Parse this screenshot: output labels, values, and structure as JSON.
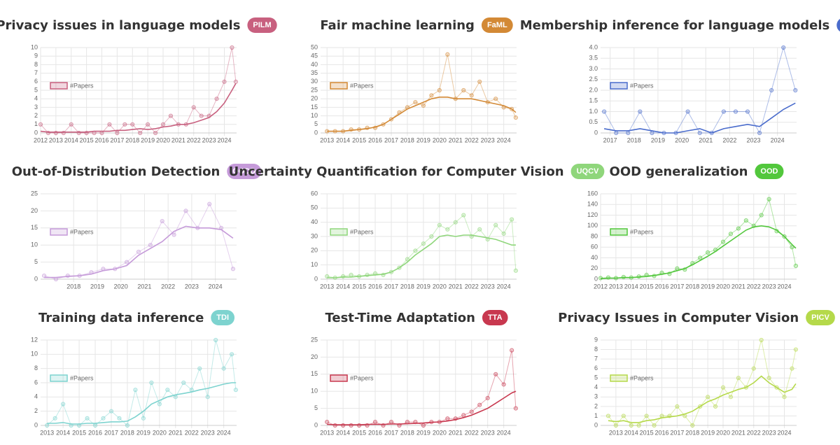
{
  "chart_data": [
    {
      "type": "line",
      "title": "Privacy issues in language models",
      "badge": "PILM",
      "color": "#c8607f",
      "x": [
        2012,
        2012.5,
        2013,
        2013.5,
        2014,
        2014.5,
        2015,
        2015.5,
        2016,
        2016.5,
        2017,
        2017.5,
        2018,
        2018.5,
        2019,
        2019.5,
        2020,
        2020.5,
        2021,
        2021.5,
        2022,
        2022.5,
        2023,
        2023.5,
        2024,
        2024.5,
        2024.75
      ],
      "series": [
        {
          "name": "#Papers",
          "color": "#c8607f",
          "values": [
            1,
            0,
            0,
            0,
            1,
            0,
            0,
            0,
            0,
            1,
            0,
            1,
            1,
            0,
            1,
            0,
            1,
            2,
            1,
            1,
            3,
            2,
            2,
            4,
            6,
            10,
            6
          ]
        }
      ],
      "trend": [
        0.2,
        0.1,
        0.1,
        0.1,
        0.1,
        0.1,
        0.1,
        0.2,
        0.2,
        0.2,
        0.3,
        0.3,
        0.4,
        0.5,
        0.4,
        0.5,
        0.7,
        0.8,
        1,
        1,
        1.2,
        1.5,
        1.8,
        2.5,
        3.5,
        5,
        5.8
      ],
      "xlim": [
        2012,
        2024.8
      ],
      "xticks": [
        2012,
        2013,
        2014,
        2015,
        2016,
        2017,
        2018,
        2019,
        2020,
        2021,
        2022,
        2023,
        2024
      ],
      "ylim": [
        0,
        10
      ],
      "yticks": [
        0,
        1,
        2,
        3,
        4,
        5,
        6,
        7,
        8,
        9,
        10
      ],
      "grid": true
    },
    {
      "type": "line",
      "title": "Fair machine learning",
      "badge": "FaML",
      "color": "#d38935",
      "x": [
        2013,
        2013.5,
        2014,
        2014.5,
        2015,
        2015.5,
        2016,
        2016.5,
        2017,
        2017.5,
        2018,
        2018.5,
        2019,
        2019.5,
        2020,
        2020.5,
        2021,
        2021.5,
        2022,
        2022.5,
        2023,
        2023.5,
        2024,
        2024.5,
        2024.75
      ],
      "series": [
        {
          "name": "#Papers",
          "color": "#d38935",
          "values": [
            1,
            1,
            1,
            2,
            2,
            3,
            3,
            5,
            8,
            12,
            15,
            18,
            16,
            22,
            25,
            46,
            20,
            25,
            22,
            30,
            18,
            20,
            15,
            14,
            9
          ]
        }
      ],
      "trend": [
        1,
        1,
        1,
        1.5,
        2,
        2.5,
        3.5,
        5,
        8,
        11,
        14,
        16,
        18,
        20,
        21,
        21,
        20,
        20,
        20,
        19,
        18,
        17,
        16,
        14,
        12
      ],
      "xlim": [
        2012.6,
        2024.8
      ],
      "xticks": [
        2013,
        2014,
        2015,
        2016,
        2017,
        2018,
        2019,
        2020,
        2021,
        2022,
        2023,
        2024
      ],
      "ylim": [
        0,
        50
      ],
      "yticks": [
        0,
        5,
        10,
        15,
        20,
        25,
        30,
        35,
        40,
        45,
        50
      ],
      "grid": true
    },
    {
      "type": "line",
      "title": "Membership inference for language models",
      "badge": "MIALM",
      "color": "#4a6ccc",
      "x": [
        2016.75,
        2017.25,
        2017.75,
        2018.25,
        2018.75,
        2019.25,
        2019.75,
        2020.25,
        2020.75,
        2021.25,
        2021.75,
        2022.25,
        2022.75,
        2023.25,
        2023.75,
        2024.25,
        2024.75
      ],
      "series": [
        {
          "name": "#Papers",
          "color": "#4a6ccc",
          "values": [
            1,
            0,
            0,
            1,
            0,
            0,
            0,
            1,
            0,
            0,
            1,
            1,
            1,
            0,
            2,
            4,
            2
          ]
        }
      ],
      "trend": [
        0.2,
        0.1,
        0.1,
        0.2,
        0.1,
        0,
        0,
        0.1,
        0.2,
        0,
        0.2,
        0.3,
        0.4,
        0.3,
        0.7,
        1.1,
        1.4
      ],
      "xlim": [
        2016.6,
        2024.8
      ],
      "xticks": [
        2017,
        2018,
        2019,
        2020,
        2021,
        2022,
        2023,
        2024
      ],
      "ylim": [
        0,
        4
      ],
      "yticks": [
        0,
        0.5,
        {
          "value": 1,
          "label": "1.0"
        },
        1.5,
        {
          "value": 2,
          "label": "2.0"
        },
        2.5,
        {
          "value": 3,
          "label": "3.0"
        },
        3.5,
        {
          "value": 4,
          "label": "4.0"
        }
      ],
      "grid": true
    },
    {
      "type": "line",
      "title": "Out-of-Distribution Detection",
      "badge": "OODD",
      "color": "#c59ad9",
      "x": [
        2016.75,
        2017.25,
        2017.75,
        2018.25,
        2018.75,
        2019.25,
        2019.75,
        2020.25,
        2020.75,
        2021.25,
        2021.75,
        2022.25,
        2022.75,
        2023.25,
        2023.75,
        2024.25,
        2024.75
      ],
      "series": [
        {
          "name": "#Papers",
          "color": "#c59ad9",
          "values": [
            1,
            0,
            1,
            1,
            2,
            3,
            3,
            5,
            8,
            10,
            17,
            13,
            20,
            15,
            22,
            15,
            3
          ]
        }
      ],
      "trend": [
        0.5,
        0.5,
        0.8,
        1,
        1.5,
        2.5,
        3,
        4,
        7,
        9,
        11,
        14,
        15.5,
        15,
        15,
        14.5,
        12
      ],
      "xlim": [
        2016.6,
        2024.9
      ],
      "xticks": [
        2018,
        2019,
        2020,
        2021,
        2022,
        2023,
        2024
      ],
      "ylim": [
        0,
        25
      ],
      "yticks": [
        0,
        5,
        10,
        15,
        20,
        25
      ],
      "grid": true
    },
    {
      "type": "line",
      "title": "Uncertainty Quantification for Computer Vision",
      "badge": "UQCV",
      "color": "#8fd67b",
      "x": [
        2013,
        2013.5,
        2014,
        2014.5,
        2015,
        2015.5,
        2016,
        2016.5,
        2017,
        2017.5,
        2018,
        2018.5,
        2019,
        2019.5,
        2020,
        2020.5,
        2021,
        2021.5,
        2022,
        2022.5,
        2023,
        2023.5,
        2024,
        2024.5,
        2024.75
      ],
      "series": [
        {
          "name": "#Papers",
          "color": "#8fd67b",
          "values": [
            2,
            1,
            2,
            3,
            2,
            3,
            4,
            3,
            5,
            8,
            14,
            20,
            25,
            30,
            38,
            35,
            40,
            45,
            30,
            35,
            28,
            38,
            32,
            42,
            6
          ]
        }
      ],
      "trend": [
        1,
        1,
        1.5,
        1.5,
        2,
        2.5,
        3,
        3.5,
        5,
        8,
        12,
        17,
        21,
        25,
        30,
        31,
        30,
        31,
        31,
        30,
        29,
        28,
        26,
        24,
        24
      ],
      "xlim": [
        2012.6,
        2024.8
      ],
      "xticks": [
        2013,
        2014,
        2015,
        2016,
        2017,
        2018,
        2019,
        2020,
        2021,
        2022,
        2023,
        2024
      ],
      "ylim": [
        0,
        60
      ],
      "yticks": [
        0,
        10,
        20,
        30,
        40,
        50,
        60
      ],
      "grid": true
    },
    {
      "type": "line",
      "title": "OOD generalization",
      "badge": "OOD",
      "color": "#52c73c",
      "x": [
        2012,
        2012.5,
        2013,
        2013.5,
        2014,
        2014.5,
        2015,
        2015.5,
        2016,
        2016.5,
        2017,
        2017.5,
        2018,
        2018.5,
        2019,
        2019.5,
        2020,
        2020.5,
        2021,
        2021.5,
        2022,
        2022.5,
        2023,
        2023.5,
        2024,
        2024.5,
        2024.75
      ],
      "series": [
        {
          "name": "#Papers",
          "color": "#52c73c",
          "values": [
            2,
            3,
            2,
            4,
            3,
            5,
            8,
            6,
            12,
            10,
            20,
            18,
            30,
            40,
            50,
            55,
            70,
            85,
            95,
            110,
            100,
            120,
            150,
            90,
            80,
            60,
            25
          ]
        }
      ],
      "trend": [
        1,
        2,
        2,
        3,
        3,
        4,
        5,
        7,
        9,
        12,
        16,
        20,
        27,
        35,
        43,
        52,
        62,
        72,
        82,
        92,
        98,
        100,
        98,
        92,
        80,
        65,
        58
      ],
      "xlim": [
        2012,
        2024.8
      ],
      "xticks": [
        2012,
        2013,
        2014,
        2015,
        2016,
        2017,
        2018,
        2019,
        2020,
        2021,
        2022,
        2023,
        2024
      ],
      "ylim": [
        0,
        160
      ],
      "yticks": [
        0,
        20,
        40,
        60,
        80,
        100,
        120,
        140,
        160
      ],
      "grid": true
    },
    {
      "type": "line",
      "title": "Training data inference",
      "badge": "TDI",
      "color": "#7dd3cf",
      "x": [
        2013,
        2013.5,
        2014,
        2014.5,
        2015,
        2015.5,
        2016,
        2016.5,
        2017,
        2017.5,
        2018,
        2018.5,
        2019,
        2019.5,
        2020,
        2020.5,
        2021,
        2021.5,
        2022,
        2022.5,
        2023,
        2023.5,
        2024,
        2024.5,
        2024.75
      ],
      "series": [
        {
          "name": "#Papers",
          "color": "#7dd3cf",
          "values": [
            0,
            1,
            3,
            0,
            0,
            1,
            0,
            1,
            2,
            1,
            0,
            5,
            1,
            6,
            3,
            5,
            4,
            6,
            5,
            8,
            4,
            12,
            8,
            10,
            5
          ]
        }
      ],
      "trend": [
        0.3,
        0.3,
        0.4,
        0.2,
        0.2,
        0.3,
        0.3,
        0.4,
        0.5,
        0.5,
        0.6,
        1.2,
        2,
        3,
        3.5,
        4,
        4.3,
        4.5,
        4.7,
        5,
        5.2,
        5.5,
        5.8,
        6,
        6
      ],
      "xlim": [
        2012.6,
        2024.8
      ],
      "xticks": [
        2013,
        2014,
        2015,
        2016,
        2017,
        2018,
        2019,
        2020,
        2021,
        2022,
        2023,
        2024
      ],
      "ylim": [
        0,
        12
      ],
      "yticks": [
        0,
        2,
        4,
        6,
        8,
        10,
        12
      ],
      "grid": true
    },
    {
      "type": "line",
      "title": "Test-Time Adaptation",
      "badge": "TTA",
      "color": "#c8384f",
      "x": [
        2013,
        2013.5,
        2014,
        2014.5,
        2015,
        2015.5,
        2016,
        2016.5,
        2017,
        2017.5,
        2018,
        2018.5,
        2019,
        2019.5,
        2020,
        2020.5,
        2021,
        2021.5,
        2022,
        2022.5,
        2023,
        2023.5,
        2024,
        2024.5,
        2024.75
      ],
      "series": [
        {
          "name": "#Papers",
          "color": "#c8384f",
          "values": [
            1,
            0,
            0,
            0,
            0,
            0,
            1,
            0,
            1,
            0,
            1,
            1,
            0,
            1,
            1,
            2,
            2,
            3,
            4,
            6,
            8,
            15,
            12,
            22,
            5
          ]
        }
      ],
      "trend": [
        0.3,
        0.2,
        0.2,
        0.2,
        0.2,
        0.3,
        0.3,
        0.3,
        0.4,
        0.4,
        0.5,
        0.6,
        0.7,
        0.9,
        1,
        1.3,
        1.7,
        2.3,
        3,
        4,
        5,
        6.5,
        8,
        9.5,
        10
      ],
      "xlim": [
        2012.6,
        2024.8
      ],
      "xticks": [
        2013,
        2014,
        2015,
        2016,
        2017,
        2018,
        2019,
        2020,
        2021,
        2022,
        2023,
        2024
      ],
      "ylim": [
        0,
        25
      ],
      "yticks": [
        0,
        5,
        10,
        15,
        20,
        25
      ],
      "grid": true
    },
    {
      "type": "line",
      "title": "Privacy Issues in Computer Vision",
      "badge": "PICV",
      "color": "#b5d94a",
      "x": [
        2012.5,
        2013,
        2013.5,
        2014,
        2014.5,
        2015,
        2015.5,
        2016,
        2016.5,
        2017,
        2017.5,
        2018,
        2018.5,
        2019,
        2019.5,
        2020,
        2020.5,
        2021,
        2021.5,
        2022,
        2022.5,
        2023,
        2023.5,
        2024,
        2024.5,
        2024.75
      ],
      "series": [
        {
          "name": "#Papers",
          "color": "#b5d94a",
          "values": [
            1,
            0,
            1,
            0,
            0,
            1,
            0,
            1,
            1,
            2,
            1,
            0,
            2,
            3,
            2,
            4,
            3,
            5,
            4,
            6,
            9,
            5,
            4,
            3,
            6,
            8
          ]
        }
      ],
      "trend": [
        0.5,
        0.4,
        0.5,
        0.3,
        0.3,
        0.5,
        0.6,
        0.8,
        0.9,
        1,
        1.2,
        1.5,
        2,
        2.5,
        2.8,
        3.2,
        3.5,
        3.8,
        4,
        4.5,
        5.2,
        4.5,
        4,
        3.5,
        3.8,
        4.4
      ],
      "xlim": [
        2012,
        2024.8
      ],
      "xticks": [
        2013,
        2014,
        2015,
        2016,
        2017,
        2018,
        2019,
        2020,
        2021,
        2022,
        2023,
        2024
      ],
      "ylim": [
        0,
        9
      ],
      "yticks": [
        0,
        1,
        2,
        3,
        4,
        5,
        6,
        7,
        8,
        9
      ],
      "grid": true
    }
  ]
}
